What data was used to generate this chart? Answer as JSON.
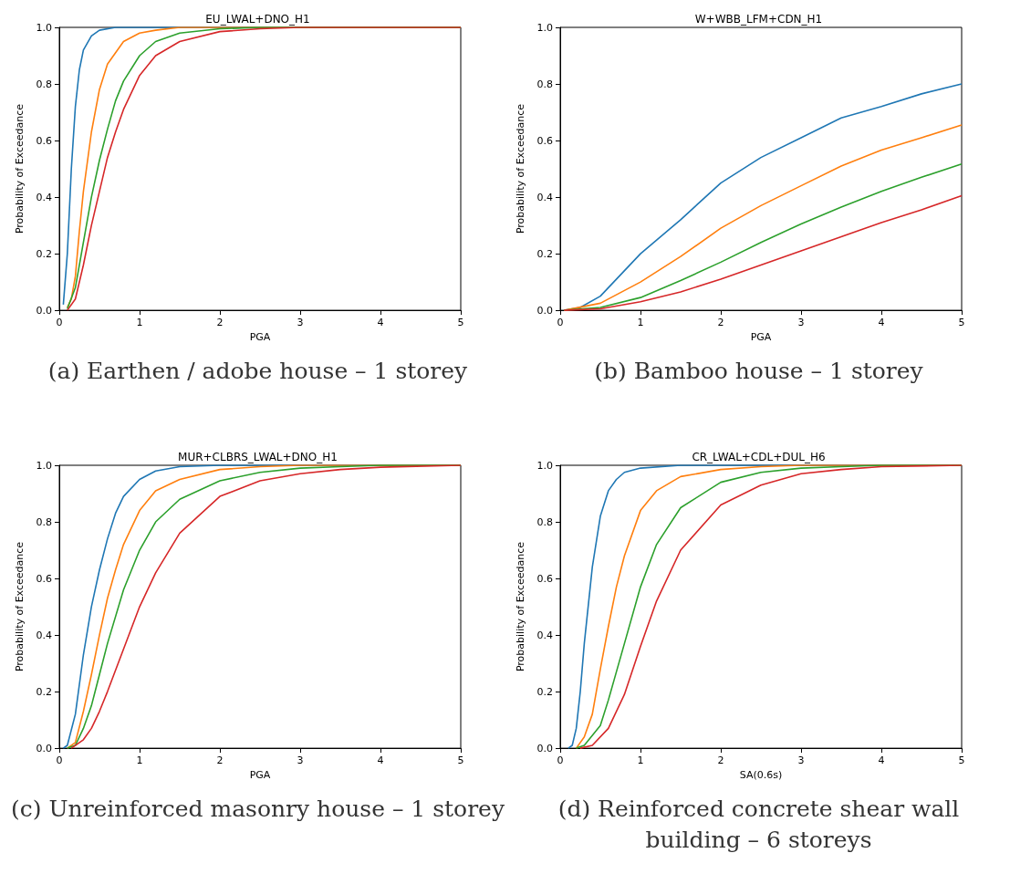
{
  "chart_data": [
    {
      "type": "line",
      "title": "EU_LWAL+DNO_H1",
      "xlabel": "PGA",
      "ylabel": "Probability of Exceedance",
      "xlim": [
        0,
        5
      ],
      "ylim": [
        0,
        1
      ],
      "xticks": [
        0,
        1,
        2,
        3,
        4,
        5
      ],
      "yticks": [
        {
          "value": 0,
          "label": "0.0"
        },
        {
          "value": 0.2,
          "label": "0.2"
        },
        {
          "value": 0.4,
          "label": "0.4"
        },
        {
          "value": 0.6,
          "label": "0.6"
        },
        {
          "value": 0.8,
          "label": "0.8"
        },
        {
          "value": 1,
          "label": "1.0"
        }
      ],
      "grid": false,
      "annotations": [
        "(a) Earthen / adobe house – 1 storey"
      ],
      "series": [
        {
          "color": "#1f77b4",
          "x": [
            0.05,
            0.1,
            0.15,
            0.2,
            0.25,
            0.3,
            0.4,
            0.5,
            0.7,
            1,
            5
          ],
          "values": [
            0.02,
            0.2,
            0.5,
            0.72,
            0.85,
            0.92,
            0.97,
            0.99,
            1,
            1,
            1
          ]
        },
        {
          "color": "#ff7f0e",
          "x": [
            0.1,
            0.15,
            0.2,
            0.25,
            0.3,
            0.4,
            0.5,
            0.6,
            0.8,
            1,
            1.2,
            1.5,
            5
          ],
          "values": [
            0.01,
            0.04,
            0.12,
            0.28,
            0.42,
            0.63,
            0.78,
            0.87,
            0.95,
            0.98,
            0.99,
            1,
            1
          ]
        },
        {
          "color": "#2ca02c",
          "x": [
            0.1,
            0.2,
            0.3,
            0.4,
            0.5,
            0.6,
            0.7,
            0.8,
            1,
            1.2,
            1.5,
            2,
            2.5,
            5
          ],
          "values": [
            0.005,
            0.08,
            0.24,
            0.4,
            0.53,
            0.64,
            0.74,
            0.81,
            0.9,
            0.95,
            0.98,
            0.995,
            1,
            1
          ]
        },
        {
          "color": "#d62728",
          "x": [
            0.1,
            0.2,
            0.3,
            0.4,
            0.5,
            0.6,
            0.7,
            0.8,
            1,
            1.2,
            1.5,
            2,
            2.5,
            3,
            5
          ],
          "values": [
            0,
            0.04,
            0.16,
            0.3,
            0.42,
            0.54,
            0.63,
            0.71,
            0.83,
            0.9,
            0.95,
            0.985,
            0.995,
            1,
            1
          ]
        }
      ]
    },
    {
      "type": "line",
      "title": "W+WBB_LFM+CDN_H1",
      "xlabel": "PGA",
      "ylabel": "Probability of Exceedance",
      "xlim": [
        0,
        5
      ],
      "ylim": [
        0,
        1
      ],
      "xticks": [
        0,
        1,
        2,
        3,
        4,
        5
      ],
      "yticks": [
        {
          "value": 0,
          "label": "0.0"
        },
        {
          "value": 0.2,
          "label": "0.2"
        },
        {
          "value": 0.4,
          "label": "0.4"
        },
        {
          "value": 0.6,
          "label": "0.6"
        },
        {
          "value": 0.8,
          "label": "0.8"
        },
        {
          "value": 1,
          "label": "1.0"
        }
      ],
      "grid": false,
      "annotations": [
        "(b) Bamboo house – 1 storey"
      ],
      "series": [
        {
          "color": "#1f77b4",
          "x": [
            0.05,
            0.25,
            0.5,
            1,
            1.5,
            2,
            2.5,
            3,
            3.5,
            4,
            4.5,
            5
          ],
          "values": [
            0,
            0.01,
            0.05,
            0.2,
            0.32,
            0.45,
            0.54,
            0.61,
            0.68,
            0.72,
            0.765,
            0.8
          ]
        },
        {
          "color": "#ff7f0e",
          "x": [
            0.05,
            0.5,
            1,
            1.5,
            2,
            2.5,
            3,
            3.5,
            4,
            4.5,
            5
          ],
          "values": [
            0,
            0.025,
            0.1,
            0.19,
            0.29,
            0.37,
            0.44,
            0.51,
            0.566,
            0.61,
            0.655
          ]
        },
        {
          "color": "#2ca02c",
          "x": [
            0.05,
            0.5,
            1,
            1.5,
            2,
            2.5,
            3,
            3.5,
            4,
            4.5,
            5
          ],
          "values": [
            0,
            0.01,
            0.045,
            0.105,
            0.17,
            0.24,
            0.305,
            0.365,
            0.42,
            0.47,
            0.517
          ]
        },
        {
          "color": "#d62728",
          "x": [
            0.05,
            0.5,
            1,
            1.5,
            2,
            2.5,
            3,
            3.5,
            4,
            4.5,
            5
          ],
          "values": [
            0,
            0.005,
            0.03,
            0.065,
            0.11,
            0.16,
            0.21,
            0.26,
            0.31,
            0.355,
            0.405
          ]
        }
      ]
    },
    {
      "type": "line",
      "title": "MUR+CLBRS_LWAL+DNO_H1",
      "xlabel": "PGA",
      "ylabel": "Probability of Exceedance",
      "xlim": [
        0,
        5
      ],
      "ylim": [
        0,
        1
      ],
      "xticks": [
        0,
        1,
        2,
        3,
        4,
        5
      ],
      "yticks": [
        {
          "value": 0,
          "label": "0.0"
        },
        {
          "value": 0.2,
          "label": "0.2"
        },
        {
          "value": 0.4,
          "label": "0.4"
        },
        {
          "value": 0.6,
          "label": "0.6"
        },
        {
          "value": 0.8,
          "label": "0.8"
        },
        {
          "value": 1,
          "label": "1.0"
        }
      ],
      "grid": false,
      "annotations": [
        "(c) Unreinforced masonry house – 1 storey"
      ],
      "series": [
        {
          "color": "#1f77b4",
          "x": [
            0.05,
            0.1,
            0.2,
            0.3,
            0.4,
            0.5,
            0.6,
            0.7,
            0.8,
            1,
            1.2,
            1.5,
            2,
            5
          ],
          "values": [
            0,
            0.01,
            0.12,
            0.33,
            0.5,
            0.63,
            0.74,
            0.83,
            0.89,
            0.95,
            0.98,
            0.995,
            1,
            1
          ]
        },
        {
          "color": "#ff7f0e",
          "x": [
            0.1,
            0.2,
            0.3,
            0.4,
            0.5,
            0.6,
            0.7,
            0.8,
            1,
            1.2,
            1.5,
            2,
            2.5,
            3,
            5
          ],
          "values": [
            0,
            0.02,
            0.13,
            0.26,
            0.4,
            0.53,
            0.63,
            0.72,
            0.84,
            0.91,
            0.95,
            0.985,
            0.995,
            1,
            1
          ]
        },
        {
          "color": "#2ca02c",
          "x": [
            0.1,
            0.2,
            0.3,
            0.4,
            0.5,
            0.6,
            0.8,
            1,
            1.2,
            1.5,
            2,
            2.5,
            3,
            3.5,
            4,
            5
          ],
          "values": [
            0,
            0.01,
            0.07,
            0.15,
            0.26,
            0.37,
            0.56,
            0.7,
            0.8,
            0.88,
            0.945,
            0.975,
            0.99,
            0.995,
            1,
            1
          ]
        },
        {
          "color": "#d62728",
          "x": [
            0.15,
            0.3,
            0.4,
            0.5,
            0.6,
            0.8,
            1,
            1.2,
            1.5,
            2,
            2.5,
            3,
            3.5,
            4,
            5
          ],
          "values": [
            0,
            0.03,
            0.07,
            0.13,
            0.2,
            0.35,
            0.5,
            0.62,
            0.76,
            0.89,
            0.945,
            0.97,
            0.985,
            0.993,
            1
          ]
        }
      ]
    },
    {
      "type": "line",
      "title": "CR_LWAL+CDL+DUL_H6",
      "xlabel": "SA(0.6s)",
      "ylabel": "Probability of Exceedance",
      "xlim": [
        0,
        5
      ],
      "ylim": [
        0,
        1
      ],
      "xticks": [
        0,
        1,
        2,
        3,
        4,
        5
      ],
      "yticks": [
        {
          "value": 0,
          "label": "0.0"
        },
        {
          "value": 0.2,
          "label": "0.2"
        },
        {
          "value": 0.4,
          "label": "0.4"
        },
        {
          "value": 0.6,
          "label": "0.6"
        },
        {
          "value": 0.8,
          "label": "0.8"
        },
        {
          "value": 1,
          "label": "1.0"
        }
      ],
      "grid": false,
      "annotations": [
        "(d) Reinforced concrete shear wall building – 6 storeys"
      ],
      "series": [
        {
          "color": "#1f77b4",
          "x": [
            0.1,
            0.15,
            0.2,
            0.25,
            0.3,
            0.4,
            0.5,
            0.6,
            0.7,
            0.8,
            1,
            1.5,
            5
          ],
          "values": [
            0,
            0.01,
            0.07,
            0.2,
            0.37,
            0.64,
            0.82,
            0.91,
            0.95,
            0.975,
            0.99,
            1,
            1
          ]
        },
        {
          "color": "#ff7f0e",
          "x": [
            0.2,
            0.3,
            0.4,
            0.5,
            0.6,
            0.7,
            0.8,
            1,
            1.2,
            1.5,
            2,
            2.5,
            3,
            5
          ],
          "values": [
            0,
            0.04,
            0.12,
            0.28,
            0.43,
            0.57,
            0.68,
            0.84,
            0.91,
            0.96,
            0.985,
            0.995,
            1,
            1
          ]
        },
        {
          "color": "#2ca02c",
          "x": [
            0.2,
            0.3,
            0.5,
            0.6,
            0.7,
            0.8,
            1,
            1.2,
            1.5,
            2,
            2.5,
            3,
            3.5,
            4,
            5
          ],
          "values": [
            0,
            0.01,
            0.08,
            0.17,
            0.27,
            0.37,
            0.57,
            0.72,
            0.85,
            0.94,
            0.975,
            0.99,
            0.995,
            1,
            1
          ]
        },
        {
          "color": "#d62728",
          "x": [
            0.25,
            0.4,
            0.6,
            0.8,
            1,
            1.2,
            1.5,
            2,
            2.5,
            3,
            3.5,
            4,
            5
          ],
          "values": [
            0,
            0.01,
            0.07,
            0.19,
            0.36,
            0.52,
            0.7,
            0.86,
            0.93,
            0.97,
            0.985,
            0.995,
            1
          ]
        }
      ]
    }
  ]
}
